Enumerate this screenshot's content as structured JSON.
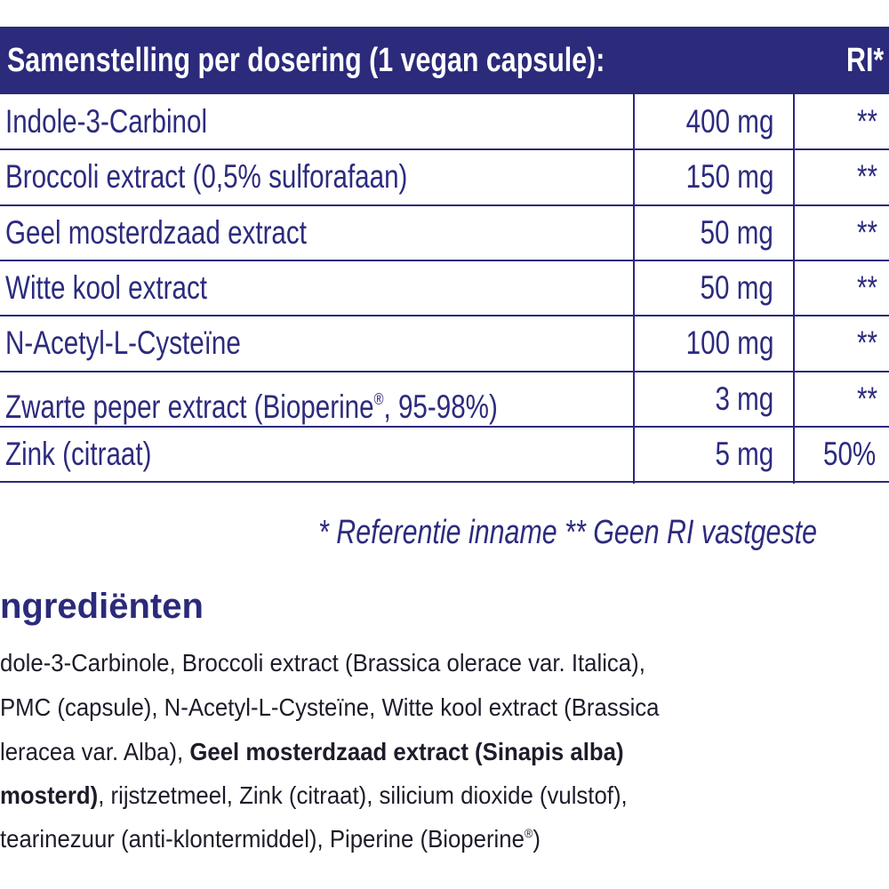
{
  "table": {
    "header": [
      "Samenstelling per dosering (1 vegan capsule):",
      "RI*"
    ],
    "rows": [
      [
        "Indole-3-Carbinol",
        "400 mg",
        "**"
      ],
      [
        "Broccoli extract (0,5% sulforafaan)",
        "150 mg",
        "**"
      ],
      [
        "Geel mosterdzaad extract",
        "50 mg",
        "**"
      ],
      [
        "Witte kool extract",
        "50 mg",
        "**"
      ],
      [
        "N-Acetyl-L-Cysteïne",
        "100 mg",
        "**"
      ],
      [
        "Zwarte peper extract (Bioperine",
        "®",
        ", 95-98%)",
        "3 mg",
        "**"
      ],
      [
        "Zink (citraat)",
        "5 mg",
        "50%"
      ]
    ]
  },
  "footnote": "* Referentie inname  ** Geen RI vastgeste",
  "ingredients": {
    "title": "ngrediënten",
    "lines": [
      [
        "dole-3-Carbinole, Broccoli extract (Brassica olerace var. Italica),"
      ],
      [
        "PMC (capsule), N-Acetyl-L-Cysteïne, Witte kool extract (Brassica"
      ],
      [
        "leracea var. Alba), ",
        "Geel mosterdzaad extract (Sinapis alba)"
      ],
      [
        "mosterd)",
        ", rijstzetmeel, Zink (citraat), silicium dioxide (vulstof),"
      ],
      [
        "tearinezuur (anti-klontermiddel), Piperine (Bioperine",
        "®",
        ")"
      ]
    ]
  }
}
